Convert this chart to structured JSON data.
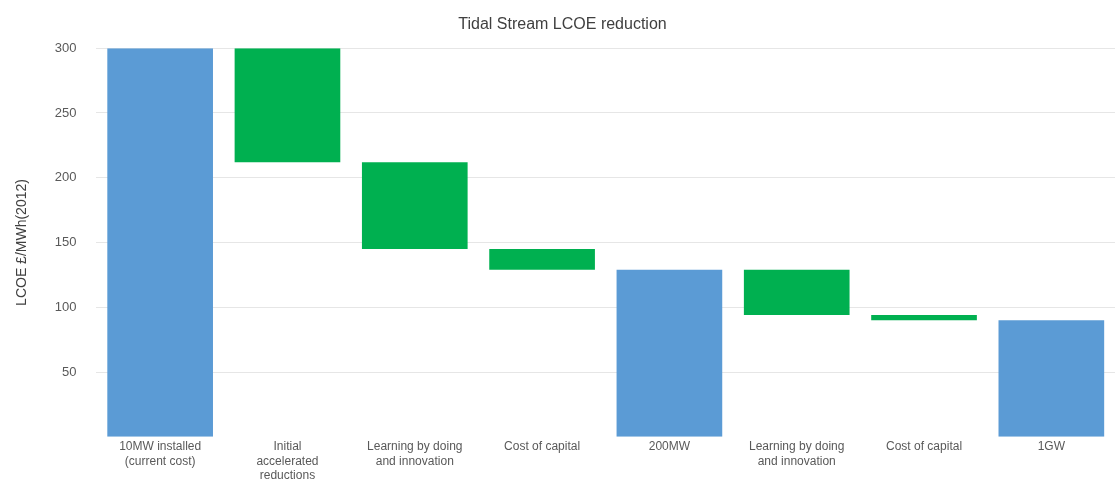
{
  "chart_data": {
    "type": "bar",
    "title": "Tidal Stream LCOE reduction",
    "ylabel": "LCOE £/MWh(2012)",
    "categories": [
      "10MW installed (current cost)",
      "Initial accelerated reductions",
      "Learning by doing and innovation",
      "Cost of capital",
      "200MW",
      "Learning by doing and innovation",
      "Cost of capital",
      "1GW"
    ],
    "values": [
      300,
      88,
      67,
      16,
      129,
      35,
      4,
      90
    ],
    "base": [
      0,
      212,
      145,
      129,
      0,
      94,
      90,
      0
    ],
    "colors": [
      "#5b9bd5",
      "#00b050",
      "#00b050",
      "#00b050",
      "#5b9bd5",
      "#00b050",
      "#00b050",
      "#5b9bd5"
    ],
    "ylim": [
      0,
      300
    ],
    "yticks": [
      50,
      100,
      150,
      200,
      250,
      300
    ],
    "grid": "y"
  }
}
